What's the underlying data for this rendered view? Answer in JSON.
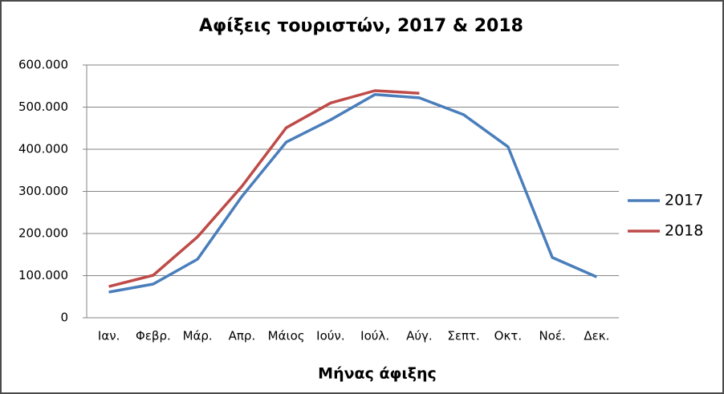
{
  "chart_data": {
    "type": "line",
    "title": "Αφίξεις τουριστών, 2017 & 2018",
    "x_label": "Μήνας άφιξης",
    "categories": [
      "Ιαν.",
      "Φεβρ.",
      "Μάρ.",
      "Απρ.",
      "Μάιος",
      "Ιούν.",
      "Ιούλ.",
      "Αύγ.",
      "Σεπτ.",
      "Οκτ.",
      "Νοέ.",
      "Δεκ."
    ],
    "series": [
      {
        "name": "2017",
        "color": "#4a7ebb",
        "values": [
          61000,
          80000,
          139000,
          288000,
          417000,
          470000,
          530000,
          522000,
          482000,
          406000,
          143000,
          97000
        ]
      },
      {
        "name": "2018",
        "color": "#be4b48",
        "values": [
          74000,
          101000,
          192000,
          312000,
          451000,
          510000,
          539000,
          533000,
          null,
          null,
          null,
          null
        ]
      }
    ],
    "ylim": [
      0,
      600000
    ],
    "yticks": [
      0,
      {
        "value": 100000,
        "label": "100.000"
      },
      {
        "value": 200000,
        "label": "200.000"
      },
      {
        "value": 300000,
        "label": "300.000"
      },
      {
        "value": 400000,
        "label": "400.000"
      },
      {
        "value": 500000,
        "label": "500.000"
      },
      {
        "value": 600000,
        "label": "600.000"
      }
    ],
    "grid": true,
    "legend": "right"
  }
}
